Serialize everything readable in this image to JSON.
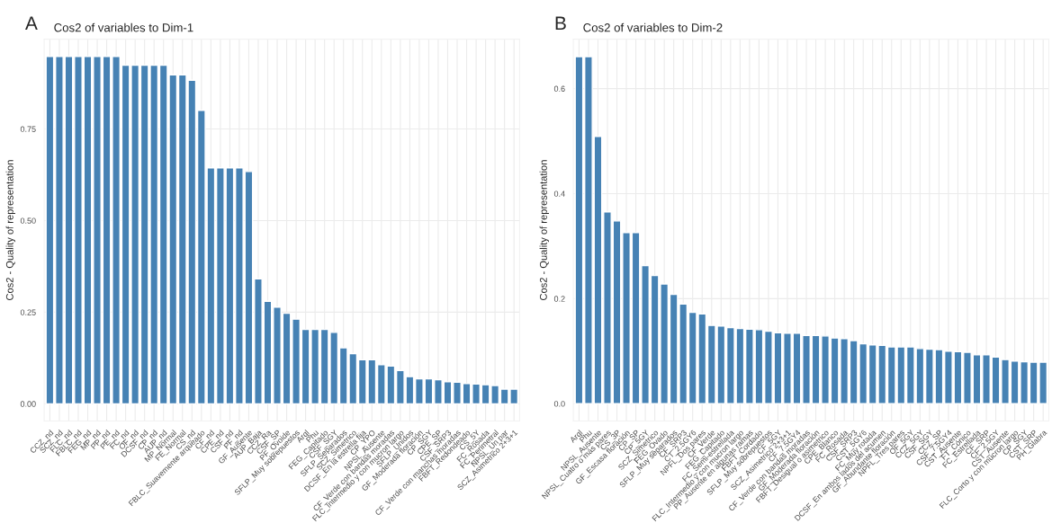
{
  "chart_data": [
    {
      "type": "bar",
      "title": "Cos2 of variables to Dim-1",
      "annotations": [
        "A"
      ],
      "ylabel": "Cos2 - Quality of representation",
      "color": "#4682b4",
      "grid": true,
      "categories": [
        "CCZ_nd",
        "SCZ_nd",
        "FLC_nd",
        "FBLC_nd",
        "FEG_nd",
        "MP_nd",
        "PP_nd",
        "PE_nd",
        "FC_nd",
        "OF_nd",
        "DCSF_nd",
        "CP_nd",
        "AUP_nd",
        "MP_Normal",
        "FE_Normal",
        "CS_nd",
        "FBLC_Suavemente arqueado",
        "CF_nd",
        "CPE_nd",
        "CSF_nd",
        "PF_nd",
        "GF_Ausente",
        "AUP_Baja",
        "CCZ_Ra",
        "CSF_SP",
        "PF_Ovoide",
        "SFLP_Muy sobrepuestos",
        "Arql",
        "Phu",
        "FEG_Capitado",
        "CSF_SGY",
        "SFLP_Separados",
        "SCZ_Simetrico",
        "DCSF_En la estrella fija",
        "CP_YPO",
        "NPSL_Ausente",
        "CF_Verde con bandas moradas",
        "FLC_Intermedio y con mucron largo",
        "SFLP_Unidos",
        "GF_Moderada floración",
        "CP_SGY",
        "CPE_SP",
        "CSF_SRP3",
        "CF_Verde con manchas moradas",
        "FBFT_Redondeado",
        "CS_5Y",
        "FC_Rosada",
        "FC_Perimetral",
        "NPSL_Un par",
        "SCZ_Asimetrico 2+3+1"
      ],
      "values": [
        0.948,
        0.948,
        0.948,
        0.948,
        0.948,
        0.948,
        0.948,
        0.948,
        0.924,
        0.924,
        0.924,
        0.924,
        0.924,
        0.898,
        0.898,
        0.883,
        0.801,
        0.644,
        0.644,
        0.644,
        0.644,
        0.634,
        0.341,
        0.28,
        0.264,
        0.247,
        0.231,
        0.203,
        0.203,
        0.203,
        0.195,
        0.153,
        0.137,
        0.12,
        0.12,
        0.107,
        0.103,
        0.091,
        0.074,
        0.068,
        0.068,
        0.066,
        0.06,
        0.059,
        0.055,
        0.054,
        0.052,
        0.05,
        0.04,
        0.04
      ],
      "ylim": [
        -0.047,
        0.995
      ],
      "yticks": [
        {
          "value": 0,
          "label": "0.00"
        },
        0.25,
        {
          "value": 0.5,
          "label": "0.50"
        },
        0.75
      ]
    },
    {
      "type": "bar",
      "title": "Cos2 of variables to Dim-2",
      "annotations": [
        "B"
      ],
      "ylabel": "Cos2 - Quality of representation",
      "color": "#4682b4",
      "grid": true,
      "categories": [
        "Arql",
        "Phu",
        "NPSL_Ausente",
        "NPSL_Cuatro o más pares",
        "CS_3P",
        "GF_Escasa floración",
        "CP_SP",
        "CP_5GY",
        "SCZ_Simetrico",
        "FEG_Ovado",
        "SFLP_Muy separados",
        "CF_SRP3",
        "CT_2.5GY6",
        "NPFL_Dos pares",
        "CF_Verde",
        "FEG_Capitado",
        "FC_Semi-estrellada",
        "FLC_Intermedio y con mucron largo",
        "PP_Ausente en algunas ramas",
        "FBFT_Cordado",
        "SFLP_Muy sobrepuestos",
        "CF_5GY",
        "SCZ_Asimetrico 2+3+1",
        "CF_7.5GY4",
        "CF_Verde con bandas moradas",
        "GF_Moderada floración",
        "FBFT_Desigual o asimetrico",
        "CPE_Blanco",
        "FC_Rosada",
        "CSF_SRP3",
        "CST_5GY6",
        "FC_Muy rotada",
        "DCSF_En ambos lados del acumen",
        "GF_Abundante floración",
        "NPFL_Tres pares",
        "OF_5GY",
        "CCZ_5GY",
        "CSF_SGY",
        "CCZ_SP",
        "CSF_7.5GY4",
        "CST_Ausente",
        "FT_Cónico",
        "FC_Estrellada",
        "CF_SRP",
        "CF_2.5GY",
        "CST_Ausente",
        "FLC_Corto y con mucron largo",
        "CP_SGY",
        "CST_SRP",
        "PH_Glabra"
      ],
      "values": [
        0.661,
        0.661,
        0.509,
        0.365,
        0.348,
        0.326,
        0.326,
        0.263,
        0.244,
        0.228,
        0.208,
        0.19,
        0.174,
        0.171,
        0.149,
        0.148,
        0.145,
        0.143,
        0.142,
        0.141,
        0.138,
        0.135,
        0.134,
        0.134,
        0.13,
        0.13,
        0.129,
        0.125,
        0.124,
        0.12,
        0.114,
        0.112,
        0.111,
        0.108,
        0.108,
        0.108,
        0.105,
        0.104,
        0.103,
        0.1,
        0.099,
        0.098,
        0.093,
        0.093,
        0.089,
        0.084,
        0.081,
        0.08,
        0.079,
        0.079
      ],
      "ylim": [
        -0.033,
        0.694
      ],
      "yticks": [
        {
          "value": 0,
          "label": "0.0"
        },
        {
          "value": 0.2,
          "label": "0.2"
        },
        {
          "value": 0.4,
          "label": "0.4"
        },
        {
          "value": 0.6,
          "label": "0.6"
        }
      ]
    }
  ]
}
